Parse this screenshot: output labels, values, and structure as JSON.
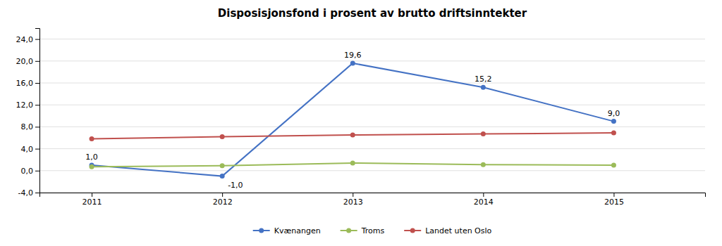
{
  "chart_data": {
    "type": "line",
    "title": "Disposisjonsfond i prosent av brutto driftsinntekter",
    "x": [
      2011,
      2012,
      2013,
      2014,
      2015
    ],
    "xlim": [
      2010.6,
      2015.7
    ],
    "xticks": [
      2011,
      2012,
      2013,
      2014,
      2015
    ],
    "series": [
      {
        "name": "Kvænangen",
        "color": "#4472C4",
        "values": [
          1.0,
          -1.0,
          19.6,
          15.2,
          9.0
        ],
        "value_labels": [
          "1,0",
          "-1,0",
          "19,6",
          "15,2",
          "9,0"
        ],
        "data_labels": true
      },
      {
        "name": "Troms",
        "color": "#9BBB59",
        "values": [
          0.7,
          0.9,
          1.4,
          1.1,
          1.0
        ]
      },
      {
        "name": "Landet uten Oslo",
        "color": "#C0504D",
        "values": [
          5.8,
          6.2,
          6.5,
          6.7,
          6.9
        ]
      }
    ],
    "ylim": [
      -4.0,
      26.0
    ],
    "yticks": [
      {
        "value": -4.0,
        "label": "-4,0"
      },
      {
        "value": 0.0,
        "label": "0,0"
      },
      {
        "value": 4.0,
        "label": "4,0"
      },
      {
        "value": 8.0,
        "label": "8,0"
      },
      {
        "value": 12.0,
        "label": "12,0"
      },
      {
        "value": 16.0,
        "label": "16,0"
      },
      {
        "value": 20.0,
        "label": "20,0"
      },
      {
        "value": 24.0,
        "label": "24,0"
      }
    ],
    "grid": true,
    "legend": "bottom",
    "marker": "circle"
  }
}
